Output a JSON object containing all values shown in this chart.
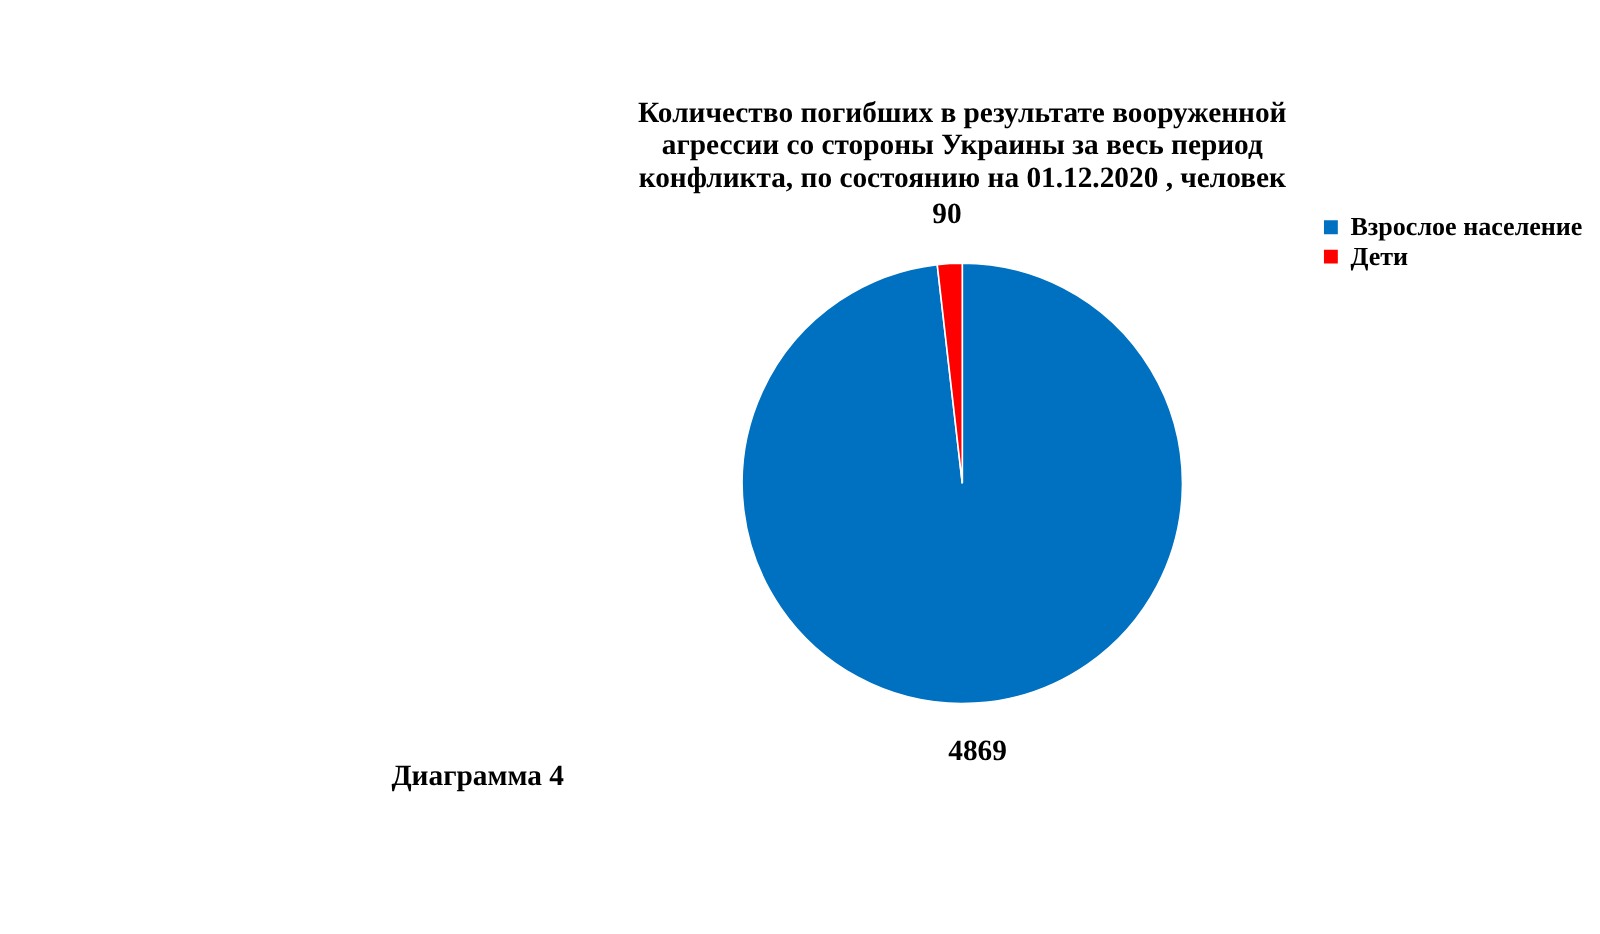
{
  "chart_data": {
    "type": "pie",
    "title": [
      "Количество погибших в результате вооруженной",
      "агрессии со стороны Украины  за весь период",
      "конфликта, по состоянию на 01.12.2020 , человек"
    ],
    "categories": [
      "Взрослое население",
      "Дети"
    ],
    "values": [
      4869,
      90
    ],
    "colors": [
      "#0070c0",
      "#ff0000"
    ],
    "data_labels": true,
    "legend": "right",
    "annotations": [
      "Диаграмма 4"
    ]
  }
}
